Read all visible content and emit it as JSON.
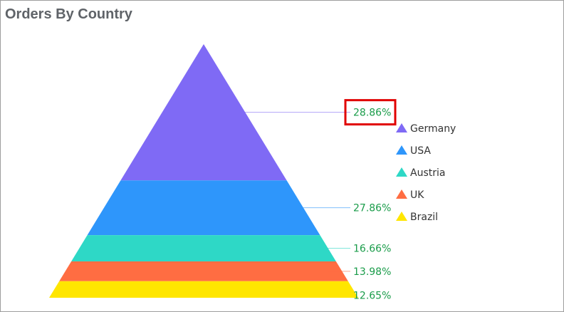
{
  "chart_data": {
    "type": "pyramid",
    "title": "Orders By Country",
    "categories": [
      "Germany",
      "USA",
      "Austria",
      "UK",
      "Brazil"
    ],
    "values": [
      28.86,
      27.86,
      16.66,
      13.98,
      12.65
    ],
    "labels": [
      "28.86%",
      "27.86%",
      "16.66%",
      "13.98%",
      "12.65%"
    ],
    "colors": [
      "#7f6af5",
      "#2e96fb",
      "#2ed8c6",
      "#ff6d42",
      "#ffe600"
    ],
    "highlighted_label": "28.86%",
    "highlight_color": "#e00000",
    "label_color": "#1a9c4a",
    "legend_position": "right",
    "legend_marker": "triangle"
  }
}
